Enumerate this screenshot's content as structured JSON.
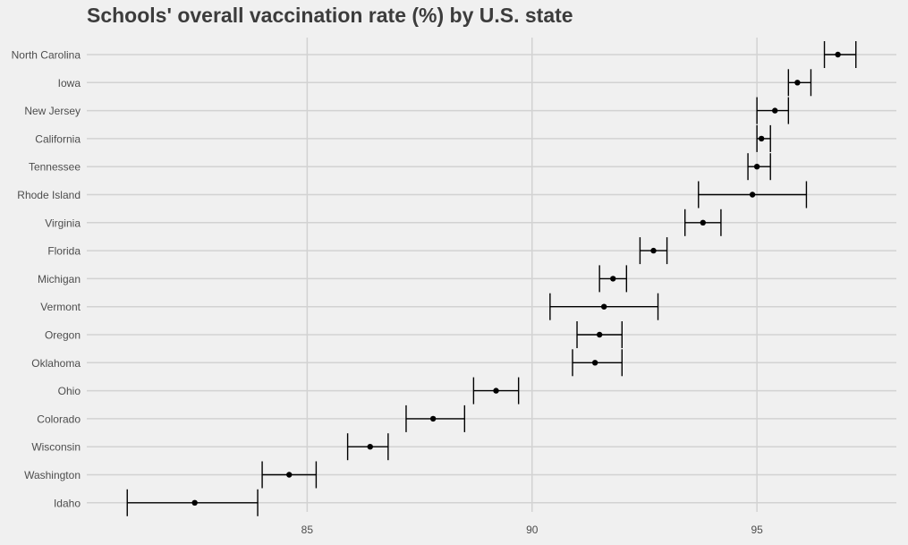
{
  "chart_data": {
    "type": "dot-errorbar",
    "title": "Schools' overall vaccination rate (%) by U.S. state",
    "xlabel": "",
    "ylabel": "",
    "xlim": [
      80.1,
      98.1
    ],
    "xticks": [
      85,
      90,
      95
    ],
    "grid": true,
    "legend": "none",
    "colors": {
      "background": "#f0f0f0",
      "grid": "#d2d2d2",
      "marks": "#000000",
      "title": "#3c3c3c",
      "tick_labels": "#4d4d4d"
    },
    "points": [
      {
        "state": "North Carolina",
        "value": 96.8,
        "lower": 96.5,
        "upper": 97.2
      },
      {
        "state": "Iowa",
        "value": 95.9,
        "lower": 95.7,
        "upper": 96.2
      },
      {
        "state": "New Jersey",
        "value": 95.4,
        "lower": 95.0,
        "upper": 95.7
      },
      {
        "state": "California",
        "value": 95.1,
        "lower": 95.0,
        "upper": 95.3
      },
      {
        "state": "Tennessee",
        "value": 95.0,
        "lower": 94.8,
        "upper": 95.3
      },
      {
        "state": "Rhode Island",
        "value": 94.9,
        "lower": 93.7,
        "upper": 96.1
      },
      {
        "state": "Virginia",
        "value": 93.8,
        "lower": 93.4,
        "upper": 94.2
      },
      {
        "state": "Florida",
        "value": 92.7,
        "lower": 92.4,
        "upper": 93.0
      },
      {
        "state": "Michigan",
        "value": 91.8,
        "lower": 91.5,
        "upper": 92.1
      },
      {
        "state": "Vermont",
        "value": 91.6,
        "lower": 90.4,
        "upper": 92.8
      },
      {
        "state": "Oregon",
        "value": 91.5,
        "lower": 91.0,
        "upper": 92.0
      },
      {
        "state": "Oklahoma",
        "value": 91.4,
        "lower": 90.9,
        "upper": 92.0
      },
      {
        "state": "Ohio",
        "value": 89.2,
        "lower": 88.7,
        "upper": 89.7
      },
      {
        "state": "Colorado",
        "value": 87.8,
        "lower": 87.2,
        "upper": 88.5
      },
      {
        "state": "Wisconsin",
        "value": 86.4,
        "lower": 85.9,
        "upper": 86.8
      },
      {
        "state": "Washington",
        "value": 84.6,
        "lower": 84.0,
        "upper": 85.2
      },
      {
        "state": "Idaho",
        "value": 82.5,
        "lower": 81.0,
        "upper": 83.9
      }
    ]
  }
}
